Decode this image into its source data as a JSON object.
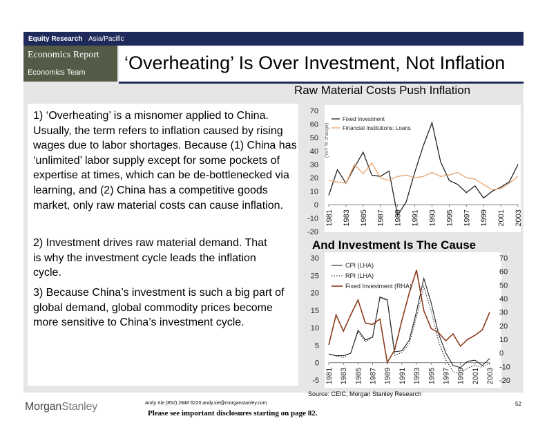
{
  "header": {
    "section": "Equity Research",
    "region": "Asia/Pacific",
    "report": "Economics Report",
    "team": "Economics Team",
    "title": "‘Overheating’ Is Over Investment, Not Inflation"
  },
  "points": {
    "p1": "1) ‘Overheating’ is a misnomer applied to China. Usually, the term refers to inflation caused by rising wages due to labor shortages.  Because (1) China has ‘unlimited’ labor supply except for some pockets of expertise at times, which can be de-bottlenecked via learning, and (2) China has a competitive goods market, only raw material costs can cause inflation.",
    "p2": "2) Investment drives raw material demand. That is why the investment cycle leads the inflation cycle.",
    "p3": "3) Because China’s investment is such a big part of global demand, global commodity prices become more sensitive to China’s investment cycle."
  },
  "charts": {
    "top_title": "Raw Material Costs Push Inflation",
    "bottom_title": "And Investment Is The Cause"
  },
  "chart_data": [
    {
      "type": "line",
      "title": "Raw Material Costs Push Inflation",
      "ylabel": "(YoY % change)",
      "ylim": [
        -20,
        70
      ],
      "yticks": [
        "70",
        "60",
        "50",
        "40",
        "30",
        "20",
        "10",
        "0",
        "-10",
        "-20"
      ],
      "x": [
        1981,
        1982,
        1983,
        1984,
        1985,
        1986,
        1987,
        1988,
        1989,
        1990,
        1991,
        1992,
        1993,
        1994,
        1995,
        1996,
        1997,
        1998,
        1999,
        2000,
        2001,
        2002,
        2003
      ],
      "xticks": [
        "1981",
        "1983",
        "1985",
        "1987",
        "1989",
        "1991",
        "1993",
        "1995",
        "1997",
        "1999",
        "2001",
        "2003"
      ],
      "series": [
        {
          "name": "Fixed Investment",
          "color": "#222222",
          "values": [
            7,
            26,
            16,
            28,
            39,
            22,
            21,
            25,
            -8,
            2,
            24,
            44,
            61,
            32,
            18,
            15,
            9,
            14,
            5,
            10,
            13,
            17,
            30
          ]
        },
        {
          "name": "Financial Institutions: Loans",
          "color": "#e8a36a",
          "values": [
            18,
            17,
            16,
            30,
            23,
            31,
            20,
            18,
            21,
            22,
            20,
            21,
            24,
            21,
            22,
            24,
            20,
            19,
            15,
            11,
            12,
            16,
            21
          ]
        }
      ]
    },
    {
      "type": "line",
      "title": "And Investment Is The Cause",
      "ylim_left": [
        -5,
        30
      ],
      "ylim_right": [
        -20,
        70
      ],
      "yticks_left": [
        "30",
        "25",
        "20",
        "15",
        "10",
        "5",
        "0",
        "-5"
      ],
      "yticks_right": [
        "70",
        "60",
        "50",
        "40",
        "30",
        "20",
        "10",
        "0",
        "-10",
        "-20"
      ],
      "x": [
        1981,
        1982,
        1983,
        1984,
        1985,
        1986,
        1987,
        1988,
        1989,
        1990,
        1991,
        1992,
        1993,
        1994,
        1995,
        1996,
        1997,
        1998,
        1999,
        2000,
        2001,
        2002,
        2003
      ],
      "xticks": [
        "1981",
        "1983",
        "1985",
        "1987",
        "1989",
        "1991",
        "1993",
        "1995",
        "1997",
        "1999",
        "2001",
        "2003"
      ],
      "series": [
        {
          "name": "CPI (LHA)",
          "axis": "left",
          "color": "#222222",
          "dash": "solid",
          "values": [
            2.5,
            2.0,
            2.0,
            2.7,
            9.3,
            6.5,
            7.3,
            18.8,
            18.0,
            3.1,
            3.4,
            6.4,
            14.7,
            24.1,
            17.1,
            8.3,
            2.8,
            -0.8,
            -1.4,
            0.4,
            0.7,
            -0.8,
            1.2
          ]
        },
        {
          "name": "RPI (LHA)",
          "axis": "left",
          "color": "#222222",
          "dash": "dotted",
          "values": [
            2.4,
            1.9,
            1.5,
            2.8,
            8.8,
            6.0,
            7.3,
            18.5,
            17.8,
            2.1,
            2.9,
            5.4,
            13.2,
            21.7,
            14.8,
            6.1,
            0.8,
            -2.6,
            -3.0,
            -1.5,
            -0.8,
            -1.3,
            -0.1
          ]
        },
        {
          "name": "Fixed Investment (RHA)",
          "axis": "right",
          "color": "#8b3a1a",
          "dash": "solid",
          "values": [
            6,
            28,
            16,
            28,
            39,
            22,
            21,
            25,
            -7,
            2,
            24,
            44,
            61,
            31,
            18,
            15,
            9,
            14,
            5,
            10,
            13,
            17,
            30
          ]
        }
      ]
    }
  ],
  "footer": {
    "source": "Source: CEIC, Morgan Stanley Research",
    "author_line": "Andy Xie (852) 2848 6220  andy.xie@morganstanley.com",
    "disclosure": "Please see important disclosures starting on page 82.",
    "page": "52",
    "logo_a": "Morgan",
    "logo_b": "Stanley"
  }
}
